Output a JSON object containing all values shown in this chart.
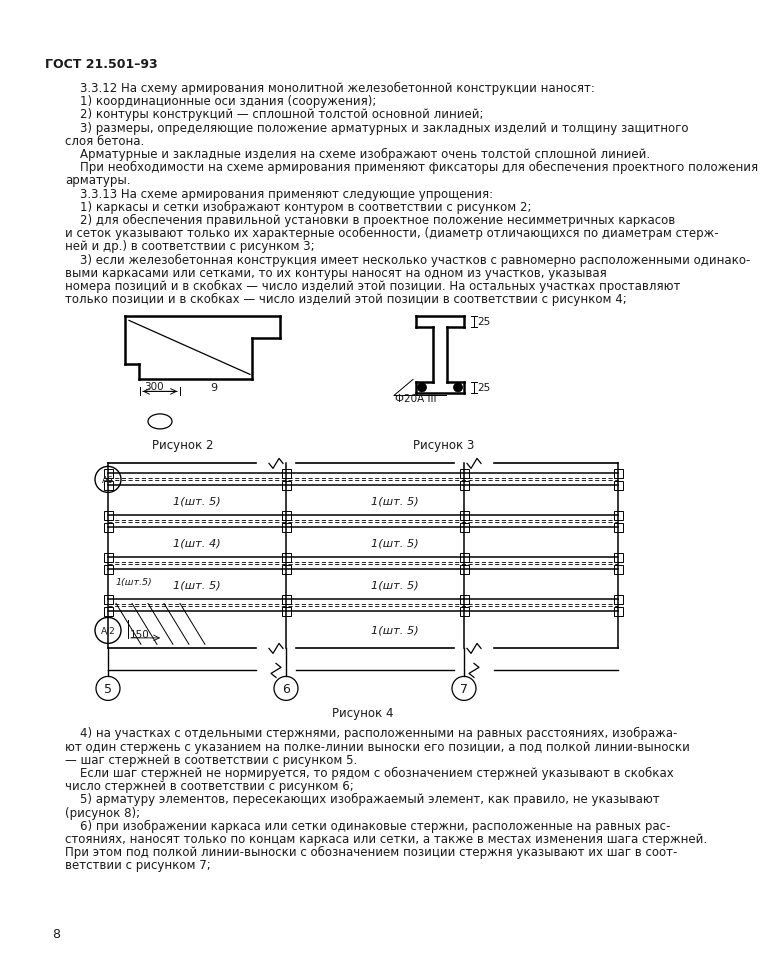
{
  "title": "ГОСТ 21.501–93",
  "bg_color": "#ffffff",
  "text_color": "#1a1a1a",
  "page_number": "8",
  "fig2_caption": "Рисунок 2",
  "fig3_caption": "Рисунок 3",
  "fig4_caption": "Рисунок 4",
  "para_lines": [
    [
      "    3.3.12 На схему армирования монолитной железобетонной конструкции наносят:"
    ],
    [
      "    1) координационные оси здания (сооружения);"
    ],
    [
      "    2) контуры конструкций — сплошной толстой основной линией;"
    ],
    [
      "    3) размеры, определяющие положение арматурных и закладных изделий и толщину защитного",
      "слоя бетона."
    ],
    [
      "    Арматурные и закладные изделия на схеме изображают очень толстой сплошной линией."
    ],
    [
      "    При необходимости на схеме армирования применяют фиксаторы для обеспечения проектного положения",
      "арматуры."
    ],
    [
      "    3.3.13 На схеме армирования применяют следующие упрощения:"
    ],
    [
      "    1) каркасы и сетки изображают контуром в соответствии с рисунком 2;"
    ],
    [
      "    2) для обеспечения правильной установки в проектное положение несимметричных каркасов",
      "и сеток указывают только их характерные особенности, (диаметр отличающихся по диаметрам стерж-",
      "ней и др.) в соответствии с рисунком 3;"
    ],
    [
      "    3) если железобетонная конструкция имеет несколько участков с равномерно расположенными одинако-",
      "выми каркасами или сетками, то их контуры наносят на одном из участков, указывая",
      "номера позиций и в скобках — число изделий этой позиции. На остальных участках проставляют",
      "только позиции и в скобках — число изделий этой позиции в соответствии с рисунком 4;"
    ]
  ],
  "after_lines": [
    [
      "    4) на участках с отдельными стержнями, расположенными на равных расстояниях, изобража-",
      "ют один стержень с указанием на полке-линии выноски его позиции, а под полкой линии-выноски",
      "— шаг стержней в соответствии с рисунком 5."
    ],
    [
      "    Если шаг стержней не нормируется, то рядом с обозначением стержней указывают в скобках",
      "число стержней в соответствии с рисунком 6;"
    ],
    [
      "    5) арматуру элементов, пересекающих изображаемый элемент, как правило, не указывают",
      "(рисунок 8);"
    ],
    [
      "    6) при изображении каркаса или сетки одинаковые стержни, расположенные на равных рас-",
      "стояниях, наносят только по концам каркаса или сетки, а также в местах изменения шага стержней.",
      "При этом под полкой линии-выноски с обозначением позиции стержня указывают их шаг в соот-",
      "ветствии с рисунком 7;"
    ]
  ]
}
